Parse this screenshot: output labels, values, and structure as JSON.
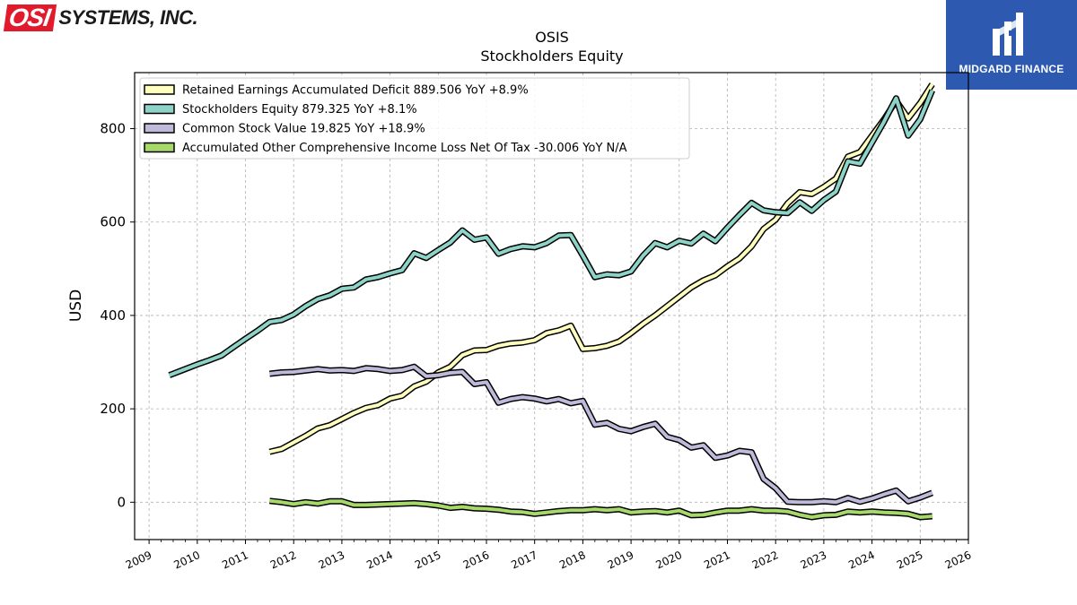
{
  "branding": {
    "company_logo_osi": "OSI",
    "company_logo_rest": "SYSTEMS, INC.",
    "publisher_name": "MIDGARD FINANCE"
  },
  "chart_data": {
    "type": "line",
    "title": "OSIS",
    "subtitle": "Stockholders  Equity",
    "xlabel": "",
    "ylabel": "USD",
    "xlim": [
      2008.7,
      2026.0
    ],
    "ylim": [
      -80,
      920
    ],
    "x_ticks": [
      "2009",
      "2010",
      "2011",
      "2012",
      "2013",
      "2014",
      "2015",
      "2016",
      "2017",
      "2018",
      "2019",
      "2020",
      "2021",
      "2022",
      "2023",
      "2024",
      "2025",
      "2026"
    ],
    "y_ticks": [
      0,
      200,
      400,
      600,
      800
    ],
    "grid": true,
    "legend_position": "top-left",
    "series": [
      {
        "name": "Retained Earnings Accumulated Deficit",
        "legend_label": "Retained Earnings Accumulated Deficit  889.506 YoY +8.9%",
        "color": "#ffffbf",
        "points": [
          [
            2011.5,
            108
          ],
          [
            2011.75,
            114
          ],
          [
            2012.0,
            128
          ],
          [
            2012.25,
            142
          ],
          [
            2012.5,
            158
          ],
          [
            2012.75,
            165
          ],
          [
            2013.0,
            178
          ],
          [
            2013.25,
            191
          ],
          [
            2013.5,
            202
          ],
          [
            2013.75,
            208
          ],
          [
            2014.0,
            222
          ],
          [
            2014.25,
            228
          ],
          [
            2014.5,
            248
          ],
          [
            2014.75,
            258
          ],
          [
            2015.0,
            278
          ],
          [
            2015.25,
            290
          ],
          [
            2015.5,
            315
          ],
          [
            2015.75,
            325
          ],
          [
            2016.0,
            326
          ],
          [
            2016.25,
            335
          ],
          [
            2016.5,
            340
          ],
          [
            2016.75,
            342
          ],
          [
            2017.0,
            347
          ],
          [
            2017.25,
            362
          ],
          [
            2017.5,
            368
          ],
          [
            2017.75,
            378
          ],
          [
            2018.0,
            328
          ],
          [
            2018.25,
            330
          ],
          [
            2018.5,
            335
          ],
          [
            2018.75,
            344
          ],
          [
            2019.0,
            362
          ],
          [
            2019.25,
            382
          ],
          [
            2019.5,
            400
          ],
          [
            2019.75,
            420
          ],
          [
            2020.0,
            440
          ],
          [
            2020.25,
            460
          ],
          [
            2020.5,
            475
          ],
          [
            2020.75,
            486
          ],
          [
            2021.0,
            505
          ],
          [
            2021.25,
            522
          ],
          [
            2021.5,
            548
          ],
          [
            2021.75,
            585
          ],
          [
            2022.0,
            605
          ],
          [
            2022.25,
            640
          ],
          [
            2022.5,
            664
          ],
          [
            2022.75,
            660
          ],
          [
            2023.0,
            675
          ],
          [
            2023.25,
            693
          ],
          [
            2023.5,
            740
          ],
          [
            2023.75,
            750
          ],
          [
            2024.0,
            785
          ],
          [
            2024.25,
            820
          ],
          [
            2024.5,
            860
          ],
          [
            2024.75,
            822
          ],
          [
            2025.0,
            855
          ],
          [
            2025.25,
            895
          ]
        ]
      },
      {
        "name": "Stockholders Equity",
        "legend_label": "Stockholders Equity  879.325 YoY +8.1%",
        "color": "#8dd3c7",
        "points": [
          [
            2009.42,
            272
          ],
          [
            2009.75,
            285
          ],
          [
            2010.0,
            295
          ],
          [
            2010.25,
            304
          ],
          [
            2010.5,
            314
          ],
          [
            2010.75,
            332
          ],
          [
            2011.0,
            350
          ],
          [
            2011.25,
            367
          ],
          [
            2011.5,
            386
          ],
          [
            2011.75,
            390
          ],
          [
            2012.0,
            402
          ],
          [
            2012.25,
            420
          ],
          [
            2012.5,
            435
          ],
          [
            2012.75,
            443
          ],
          [
            2013.0,
            457
          ],
          [
            2013.25,
            460
          ],
          [
            2013.5,
            477
          ],
          [
            2013.75,
            482
          ],
          [
            2014.0,
            490
          ],
          [
            2014.25,
            497
          ],
          [
            2014.5,
            533
          ],
          [
            2014.75,
            523
          ],
          [
            2015.0,
            540
          ],
          [
            2015.25,
            556
          ],
          [
            2015.5,
            582
          ],
          [
            2015.75,
            562
          ],
          [
            2016.0,
            567
          ],
          [
            2016.25,
            532
          ],
          [
            2016.5,
            542
          ],
          [
            2016.75,
            548
          ],
          [
            2017.0,
            546
          ],
          [
            2017.25,
            555
          ],
          [
            2017.5,
            571
          ],
          [
            2017.75,
            572
          ],
          [
            2018.0,
            528
          ],
          [
            2018.25,
            482
          ],
          [
            2018.5,
            488
          ],
          [
            2018.75,
            486
          ],
          [
            2019.0,
            494
          ],
          [
            2019.25,
            528
          ],
          [
            2019.5,
            555
          ],
          [
            2019.75,
            546
          ],
          [
            2020.0,
            560
          ],
          [
            2020.25,
            554
          ],
          [
            2020.5,
            575
          ],
          [
            2020.75,
            559
          ],
          [
            2021.0,
            588
          ],
          [
            2021.25,
            615
          ],
          [
            2021.5,
            641
          ],
          [
            2021.75,
            625
          ],
          [
            2022.0,
            621
          ],
          [
            2022.25,
            619
          ],
          [
            2022.5,
            642
          ],
          [
            2022.75,
            624
          ],
          [
            2023.0,
            647
          ],
          [
            2023.25,
            665
          ],
          [
            2023.5,
            730
          ],
          [
            2023.75,
            725
          ],
          [
            2024.0,
            770
          ],
          [
            2024.25,
            815
          ],
          [
            2024.5,
            865
          ],
          [
            2024.75,
            785
          ],
          [
            2025.0,
            820
          ],
          [
            2025.25,
            882
          ]
        ]
      },
      {
        "name": "Common Stock Value",
        "legend_label": "Common Stock Value  19.825 YoY +18.9%",
        "color": "#bebada",
        "points": [
          [
            2011.5,
            275
          ],
          [
            2011.75,
            278
          ],
          [
            2012.0,
            279
          ],
          [
            2012.25,
            282
          ],
          [
            2012.5,
            285
          ],
          [
            2012.75,
            282
          ],
          [
            2013.0,
            283
          ],
          [
            2013.25,
            281
          ],
          [
            2013.5,
            287
          ],
          [
            2013.75,
            285
          ],
          [
            2014.0,
            281
          ],
          [
            2014.25,
            283
          ],
          [
            2014.5,
            290
          ],
          [
            2014.75,
            270
          ],
          [
            2015.0,
            272
          ],
          [
            2015.25,
            277
          ],
          [
            2015.5,
            279
          ],
          [
            2015.75,
            253
          ],
          [
            2016.0,
            257
          ],
          [
            2016.25,
            213
          ],
          [
            2016.5,
            221
          ],
          [
            2016.75,
            225
          ],
          [
            2017.0,
            222
          ],
          [
            2017.25,
            216
          ],
          [
            2017.5,
            221
          ],
          [
            2017.75,
            212
          ],
          [
            2018.0,
            217
          ],
          [
            2018.25,
            166
          ],
          [
            2018.5,
            170
          ],
          [
            2018.75,
            157
          ],
          [
            2019.0,
            152
          ],
          [
            2019.25,
            161
          ],
          [
            2019.5,
            168
          ],
          [
            2019.75,
            140
          ],
          [
            2020.0,
            133
          ],
          [
            2020.25,
            117
          ],
          [
            2020.5,
            122
          ],
          [
            2020.75,
            95
          ],
          [
            2021.0,
            100
          ],
          [
            2021.25,
            110
          ],
          [
            2021.5,
            107
          ],
          [
            2021.75,
            50
          ],
          [
            2022.0,
            30
          ],
          [
            2022.25,
            1
          ],
          [
            2022.5,
            0
          ],
          [
            2022.75,
            0
          ],
          [
            2023.0,
            2
          ],
          [
            2023.25,
            0
          ],
          [
            2023.5,
            9
          ],
          [
            2023.75,
            1
          ],
          [
            2024.0,
            8
          ],
          [
            2024.25,
            17
          ],
          [
            2024.5,
            25
          ],
          [
            2024.75,
            2
          ],
          [
            2025.0,
            10
          ],
          [
            2025.25,
            20
          ]
        ]
      },
      {
        "name": "Accumulated Other Comprehensive Income Loss Net Of Tax",
        "legend_label": "Accumulated Other Comprehensive Income Loss Net Of Tax  -30.006 YoY N/A",
        "color": "#a6d96a",
        "points": [
          [
            2011.5,
            3
          ],
          [
            2011.75,
            0
          ],
          [
            2012.0,
            -4
          ],
          [
            2012.25,
            0
          ],
          [
            2012.5,
            -3
          ],
          [
            2012.75,
            2
          ],
          [
            2013.0,
            2
          ],
          [
            2013.25,
            -6
          ],
          [
            2013.5,
            -6
          ],
          [
            2013.75,
            -5
          ],
          [
            2014.0,
            -4
          ],
          [
            2014.25,
            -3
          ],
          [
            2014.5,
            -2
          ],
          [
            2014.75,
            -4
          ],
          [
            2015.0,
            -7
          ],
          [
            2015.25,
            -12
          ],
          [
            2015.5,
            -10
          ],
          [
            2015.75,
            -13
          ],
          [
            2016.0,
            -14
          ],
          [
            2016.25,
            -16
          ],
          [
            2016.5,
            -20
          ],
          [
            2016.75,
            -21
          ],
          [
            2017.0,
            -25
          ],
          [
            2017.25,
            -22
          ],
          [
            2017.5,
            -19
          ],
          [
            2017.75,
            -17
          ],
          [
            2018.0,
            -17
          ],
          [
            2018.25,
            -15
          ],
          [
            2018.5,
            -17
          ],
          [
            2018.75,
            -15
          ],
          [
            2019.0,
            -22
          ],
          [
            2019.25,
            -20
          ],
          [
            2019.5,
            -19
          ],
          [
            2019.75,
            -22
          ],
          [
            2020.0,
            -18
          ],
          [
            2020.25,
            -28
          ],
          [
            2020.5,
            -27
          ],
          [
            2020.75,
            -22
          ],
          [
            2021.0,
            -18
          ],
          [
            2021.25,
            -18
          ],
          [
            2021.5,
            -15
          ],
          [
            2021.75,
            -18
          ],
          [
            2022.0,
            -18
          ],
          [
            2022.25,
            -20
          ],
          [
            2022.5,
            -27
          ],
          [
            2022.75,
            -32
          ],
          [
            2023.0,
            -28
          ],
          [
            2023.25,
            -27
          ],
          [
            2023.5,
            -20
          ],
          [
            2023.75,
            -22
          ],
          [
            2024.0,
            -20
          ],
          [
            2024.25,
            -22
          ],
          [
            2024.5,
            -23
          ],
          [
            2024.75,
            -25
          ],
          [
            2025.0,
            -32
          ],
          [
            2025.25,
            -30
          ]
        ]
      }
    ]
  }
}
